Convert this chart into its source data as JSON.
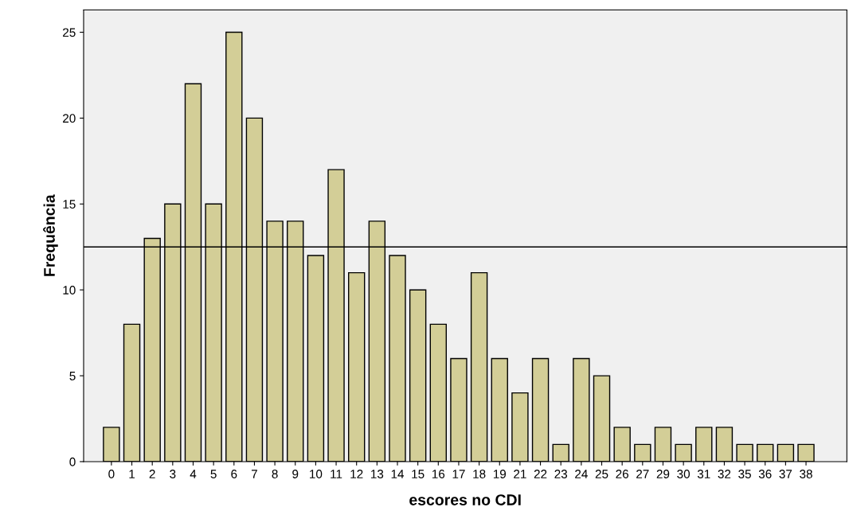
{
  "chart_data": {
    "type": "bar",
    "xlabel": "escores no CDI",
    "ylabel": "Frequência",
    "categories": [
      "0",
      "1",
      "2",
      "3",
      "4",
      "5",
      "6",
      "7",
      "8",
      "9",
      "10",
      "11",
      "12",
      "13",
      "14",
      "15",
      "16",
      "17",
      "18",
      "19",
      "21",
      "22",
      "23",
      "24",
      "25",
      "26",
      "27",
      "29",
      "30",
      "31",
      "32",
      "35",
      "36",
      "37",
      "38"
    ],
    "values": [
      2,
      8,
      13,
      15,
      22,
      15,
      25,
      20,
      14,
      14,
      12,
      17,
      11,
      14,
      12,
      10,
      8,
      6,
      11,
      6,
      4,
      6,
      1,
      6,
      5,
      2,
      1,
      2,
      1,
      2,
      2,
      1,
      1,
      1,
      1
    ],
    "color": "#d3ce97",
    "ylim": [
      0,
      26.3
    ],
    "yticks": [
      0,
      5,
      10,
      15,
      20,
      25
    ],
    "ref_lines": [
      {
        "axis": "y",
        "value": 12.5,
        "color": "#000000"
      }
    ],
    "grid": false,
    "legend": false
  }
}
